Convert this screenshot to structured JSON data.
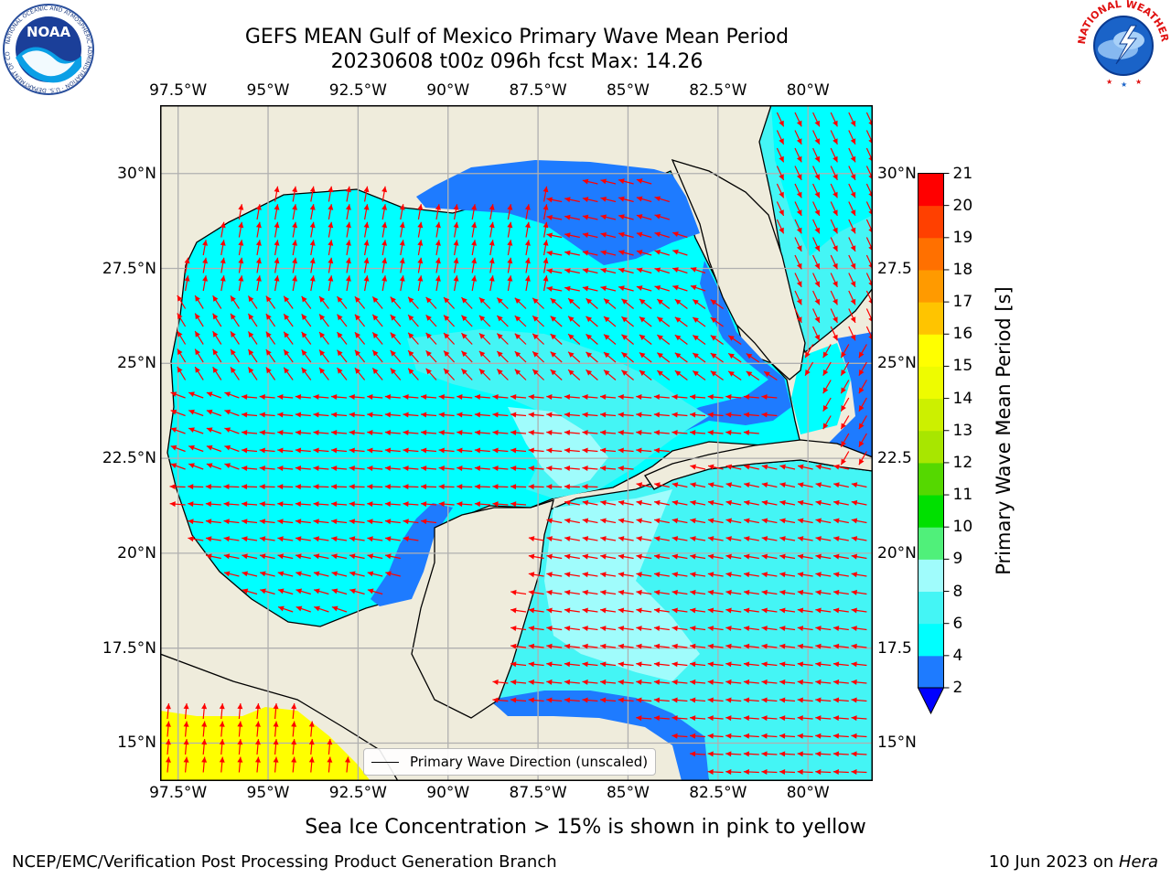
{
  "title": {
    "line1": "GEFS MEAN Gulf of Mexico Primary Wave Mean Period",
    "line2": "20230608 t00z 096h fcst   Max: 14.26"
  },
  "logos": {
    "left": {
      "text": "NOAA",
      "ring_text": "NATIONAL OCEANIC AND ATMOSPHERIC ADMINISTRATION · U.S. DEPARTMENT OF COMMERCE"
    },
    "right": {
      "ring_text": "NATIONAL WEATHER SERVICE"
    }
  },
  "map": {
    "lon_ticks": [
      {
        "value": -97.5,
        "label": "97.5°W"
      },
      {
        "value": -95,
        "label": "95°W"
      },
      {
        "value": -92.5,
        "label": "92.5°W"
      },
      {
        "value": -90,
        "label": "90°W"
      },
      {
        "value": -87.5,
        "label": "87.5°W"
      },
      {
        "value": -85,
        "label": "85°W"
      },
      {
        "value": -82.5,
        "label": "82.5°W"
      },
      {
        "value": -80,
        "label": "80°W"
      }
    ],
    "lat_ticks_left": [
      {
        "value": 30,
        "label": "30°N"
      },
      {
        "value": 27.5,
        "label": "27.5°N"
      },
      {
        "value": 25,
        "label": "25°N"
      },
      {
        "value": 22.5,
        "label": "22.5°N"
      },
      {
        "value": 20,
        "label": "20°N"
      },
      {
        "value": 17.5,
        "label": "17.5°N"
      },
      {
        "value": 15,
        "label": "15°N"
      }
    ],
    "lat_ticks_right": [
      {
        "value": 30,
        "label": "30°N"
      },
      {
        "value": 27.5,
        "label": "27.5"
      },
      {
        "value": 25,
        "label": "25°N"
      },
      {
        "value": 22.5,
        "label": "22.5"
      },
      {
        "value": 20,
        "label": "20°N"
      },
      {
        "value": 17.5,
        "label": "17.5"
      },
      {
        "value": 15,
        "label": "15°N"
      }
    ],
    "lon_range": [
      -98,
      -78.2
    ],
    "lat_range": [
      14,
      31.8
    ],
    "grid": true,
    "colors": {
      "land": "#efecdc",
      "grid": "#b0b0b0",
      "arrow": "#ff0000",
      "coast": "#000000"
    },
    "legend_label": "Primary Wave Direction (unscaled)"
  },
  "colorbar": {
    "label": "Primary Wave Mean Period [s]",
    "tick_labels": [
      "2",
      "4",
      "6",
      "8",
      "9",
      "10",
      "11",
      "12",
      "13",
      "14",
      "15",
      "16",
      "17",
      "18",
      "19",
      "20",
      "21"
    ],
    "bins": [
      {
        "from": 2,
        "to": 4,
        "color": "#1e7bff"
      },
      {
        "from": 4,
        "to": 6,
        "color": "#00ffff"
      },
      {
        "from": 6,
        "to": 8,
        "color": "#44f5f5"
      },
      {
        "from": 8,
        "to": 9,
        "color": "#a0fcfc"
      },
      {
        "from": 9,
        "to": 10,
        "color": "#50f07a"
      },
      {
        "from": 10,
        "to": 11,
        "color": "#00e000"
      },
      {
        "from": 11,
        "to": 12,
        "color": "#55d800"
      },
      {
        "from": 12,
        "to": 13,
        "color": "#a8e600"
      },
      {
        "from": 13,
        "to": 14,
        "color": "#ccf000"
      },
      {
        "from": 14,
        "to": 15,
        "color": "#eefc00"
      },
      {
        "from": 15,
        "to": 16,
        "color": "#ffff00"
      },
      {
        "from": 16,
        "to": 17,
        "color": "#ffc400"
      },
      {
        "from": 17,
        "to": 18,
        "color": "#ff9a00"
      },
      {
        "from": 18,
        "to": 19,
        "color": "#ff7000"
      },
      {
        "from": 19,
        "to": 20,
        "color": "#ff4000"
      },
      {
        "from": 20,
        "to": 21,
        "color": "#ff0000"
      }
    ],
    "under_color": "#0000ff"
  },
  "note": "Sea Ice Concentration > 15% is shown in pink to yellow",
  "footer": {
    "left": "NCEP/EMC/Verification Post Processing Product Generation Branch",
    "right_prefix": "10 Jun 2023 on ",
    "right_host": "Hera"
  }
}
